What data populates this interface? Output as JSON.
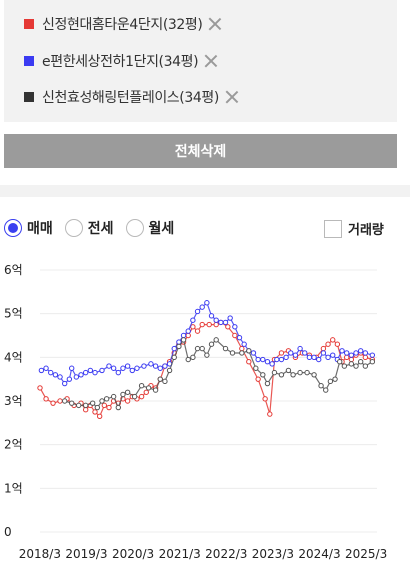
{
  "compare": {
    "items": [
      {
        "label": "신정현대홈타운4단지(32평)",
        "color": "#e53935"
      },
      {
        "label": "e편한세상전하1단지(34평)",
        "color": "#3b3bf2"
      },
      {
        "label": "신천효성해링턴플레이스(34평)",
        "color": "#333333"
      }
    ],
    "delete_all_label": "전체삭제"
  },
  "filters": {
    "options": [
      {
        "label": "매매",
        "selected": true
      },
      {
        "label": "전세",
        "selected": false
      },
      {
        "label": "월세",
        "selected": false
      }
    ],
    "volume_label": "거래량",
    "volume_checked": false
  },
  "chart_data": {
    "type": "line",
    "title": "",
    "xlabel": "",
    "ylabel": "",
    "x_ticks": [
      "2018/3",
      "2019/3",
      "2020/3",
      "2021/3",
      "2022/3",
      "2023/3",
      "2024/3",
      "2025/3"
    ],
    "y_ticks": [
      "0",
      "1억",
      "2억",
      "3억",
      "4억",
      "5억",
      "6억"
    ],
    "ylim": [
      0,
      6
    ],
    "xlim": [
      2018.17,
      2025.4
    ],
    "grid": true,
    "series": [
      {
        "color": "#e53935",
        "points": [
          [
            2018.17,
            3.3
          ],
          [
            2018.3,
            3.05
          ],
          [
            2018.45,
            2.95
          ],
          [
            2018.6,
            3.0
          ],
          [
            2018.75,
            3.05
          ],
          [
            2018.9,
            2.9
          ],
          [
            2019.05,
            2.95
          ],
          [
            2019.15,
            2.8
          ],
          [
            2019.25,
            2.9
          ],
          [
            2019.35,
            2.75
          ],
          [
            2019.45,
            2.65
          ],
          [
            2019.55,
            2.9
          ],
          [
            2019.65,
            2.85
          ],
          [
            2019.75,
            3.0
          ],
          [
            2019.85,
            2.95
          ],
          [
            2019.95,
            3.05
          ],
          [
            2020.05,
            3.0
          ],
          [
            2020.15,
            3.1
          ],
          [
            2020.25,
            3.05
          ],
          [
            2020.35,
            3.1
          ],
          [
            2020.45,
            3.2
          ],
          [
            2020.55,
            3.35
          ],
          [
            2020.65,
            3.3
          ],
          [
            2020.75,
            3.5
          ],
          [
            2020.85,
            3.8
          ],
          [
            2020.95,
            3.9
          ],
          [
            2021.05,
            4.1
          ],
          [
            2021.15,
            4.3
          ],
          [
            2021.25,
            4.35
          ],
          [
            2021.35,
            4.5
          ],
          [
            2021.45,
            4.7
          ],
          [
            2021.55,
            4.6
          ],
          [
            2021.65,
            4.75
          ],
          [
            2021.8,
            4.75
          ],
          [
            2021.95,
            4.75
          ],
          [
            2022.05,
            4.8
          ],
          [
            2022.2,
            4.7
          ],
          [
            2022.35,
            4.5
          ],
          [
            2022.5,
            4.2
          ],
          [
            2022.65,
            3.9
          ],
          [
            2022.85,
            3.5
          ],
          [
            2023.0,
            3.05
          ],
          [
            2023.1,
            2.7
          ],
          [
            2023.2,
            3.95
          ],
          [
            2023.35,
            4.1
          ],
          [
            2023.5,
            4.15
          ],
          [
            2023.65,
            4.0
          ],
          [
            2023.8,
            4.1
          ],
          [
            2023.95,
            4.05
          ],
          [
            2024.1,
            4.0
          ],
          [
            2024.25,
            4.2
          ],
          [
            2024.35,
            4.3
          ],
          [
            2024.45,
            4.4
          ],
          [
            2024.55,
            4.3
          ],
          [
            2024.65,
            3.9
          ],
          [
            2024.75,
            4.0
          ],
          [
            2024.85,
            3.95
          ],
          [
            2024.95,
            4.05
          ],
          [
            2025.05,
            4.1
          ],
          [
            2025.15,
            4.0
          ],
          [
            2025.3,
            3.95
          ]
        ]
      },
      {
        "color": "#3b3bf2",
        "points": [
          [
            2018.2,
            3.7
          ],
          [
            2018.3,
            3.75
          ],
          [
            2018.4,
            3.65
          ],
          [
            2018.5,
            3.6
          ],
          [
            2018.6,
            3.55
          ],
          [
            2018.7,
            3.4
          ],
          [
            2018.8,
            3.5
          ],
          [
            2018.85,
            3.75
          ],
          [
            2018.95,
            3.55
          ],
          [
            2019.05,
            3.6
          ],
          [
            2019.15,
            3.65
          ],
          [
            2019.25,
            3.7
          ],
          [
            2019.35,
            3.65
          ],
          [
            2019.5,
            3.7
          ],
          [
            2019.65,
            3.8
          ],
          [
            2019.75,
            3.75
          ],
          [
            2019.85,
            3.65
          ],
          [
            2019.95,
            3.75
          ],
          [
            2020.05,
            3.8
          ],
          [
            2020.15,
            3.7
          ],
          [
            2020.25,
            3.75
          ],
          [
            2020.4,
            3.8
          ],
          [
            2020.55,
            3.85
          ],
          [
            2020.65,
            3.8
          ],
          [
            2020.75,
            3.75
          ],
          [
            2020.85,
            3.8
          ],
          [
            2020.95,
            3.85
          ],
          [
            2021.05,
            4.2
          ],
          [
            2021.15,
            4.35
          ],
          [
            2021.25,
            4.5
          ],
          [
            2021.35,
            4.6
          ],
          [
            2021.45,
            4.85
          ],
          [
            2021.55,
            5.05
          ],
          [
            2021.65,
            5.15
          ],
          [
            2021.75,
            5.25
          ],
          [
            2021.85,
            4.95
          ],
          [
            2021.95,
            4.85
          ],
          [
            2022.05,
            4.8
          ],
          [
            2022.15,
            4.8
          ],
          [
            2022.25,
            4.9
          ],
          [
            2022.35,
            4.7
          ],
          [
            2022.45,
            4.45
          ],
          [
            2022.55,
            4.3
          ],
          [
            2022.65,
            4.15
          ],
          [
            2022.75,
            4.1
          ],
          [
            2022.85,
            3.95
          ],
          [
            2022.95,
            3.95
          ],
          [
            2023.05,
            3.9
          ],
          [
            2023.15,
            3.85
          ],
          [
            2023.25,
            3.95
          ],
          [
            2023.35,
            3.95
          ],
          [
            2023.45,
            4.0
          ],
          [
            2023.55,
            4.1
          ],
          [
            2023.65,
            4.05
          ],
          [
            2023.75,
            4.2
          ],
          [
            2023.85,
            4.1
          ],
          [
            2023.95,
            4.0
          ],
          [
            2024.05,
            4.0
          ],
          [
            2024.15,
            3.95
          ],
          [
            2024.25,
            4.1
          ],
          [
            2024.35,
            4.0
          ],
          [
            2024.45,
            4.05
          ],
          [
            2024.55,
            3.95
          ],
          [
            2024.65,
            4.15
          ],
          [
            2024.75,
            4.1
          ],
          [
            2024.85,
            4.05
          ],
          [
            2024.95,
            4.1
          ],
          [
            2025.05,
            4.15
          ],
          [
            2025.15,
            4.1
          ],
          [
            2025.3,
            4.05
          ]
        ]
      },
      {
        "color": "#555555",
        "points": [
          [
            2018.7,
            3.0
          ],
          [
            2018.85,
            2.95
          ],
          [
            2019.0,
            2.9
          ],
          [
            2019.15,
            2.9
          ],
          [
            2019.3,
            2.95
          ],
          [
            2019.4,
            2.85
          ],
          [
            2019.5,
            3.0
          ],
          [
            2019.6,
            3.05
          ],
          [
            2019.75,
            3.1
          ],
          [
            2019.85,
            2.85
          ],
          [
            2019.95,
            3.15
          ],
          [
            2020.05,
            3.2
          ],
          [
            2020.2,
            3.1
          ],
          [
            2020.35,
            3.35
          ],
          [
            2020.5,
            3.3
          ],
          [
            2020.65,
            3.25
          ],
          [
            2020.75,
            3.5
          ],
          [
            2020.85,
            3.45
          ],
          [
            2020.95,
            3.7
          ],
          [
            2021.05,
            4.0
          ],
          [
            2021.15,
            4.25
          ],
          [
            2021.25,
            4.4
          ],
          [
            2021.35,
            3.95
          ],
          [
            2021.45,
            4.0
          ],
          [
            2021.55,
            4.2
          ],
          [
            2021.65,
            4.2
          ],
          [
            2021.75,
            4.05
          ],
          [
            2021.85,
            4.3
          ],
          [
            2021.95,
            4.4
          ],
          [
            2022.15,
            4.2
          ],
          [
            2022.3,
            4.1
          ],
          [
            2022.5,
            4.1
          ],
          [
            2022.65,
            4.15
          ],
          [
            2022.8,
            3.75
          ],
          [
            2022.95,
            3.6
          ],
          [
            2023.05,
            3.4
          ],
          [
            2023.2,
            3.65
          ],
          [
            2023.35,
            3.6
          ],
          [
            2023.5,
            3.7
          ],
          [
            2023.6,
            3.6
          ],
          [
            2023.75,
            3.65
          ],
          [
            2023.9,
            3.65
          ],
          [
            2024.05,
            3.6
          ],
          [
            2024.2,
            3.35
          ],
          [
            2024.3,
            3.25
          ],
          [
            2024.4,
            3.45
          ],
          [
            2024.5,
            3.5
          ],
          [
            2024.6,
            3.9
          ],
          [
            2024.7,
            3.8
          ],
          [
            2024.85,
            3.85
          ],
          [
            2024.95,
            3.8
          ],
          [
            2025.05,
            3.9
          ],
          [
            2025.15,
            3.8
          ],
          [
            2025.3,
            3.9
          ]
        ]
      }
    ]
  }
}
